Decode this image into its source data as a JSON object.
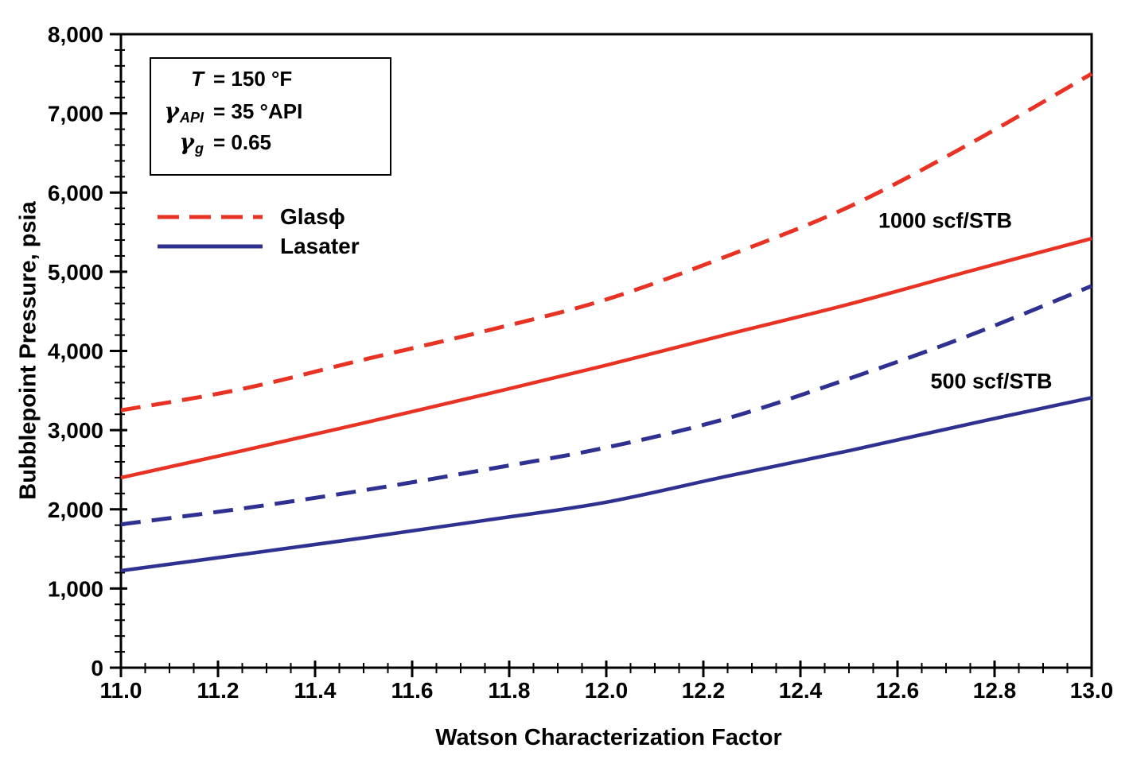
{
  "chart_data": {
    "type": "line",
    "title": "",
    "xlabel": "Watson Characterization Factor",
    "ylabel": "Bubblepoint Pressure, psia",
    "xlim": [
      11.0,
      13.0
    ],
    "ylim": [
      0,
      8000
    ],
    "x_major_step": 0.2,
    "x_minor_step": 0.05,
    "y_major_step": 1000,
    "y_minor_step": 200,
    "grid": false,
    "x_tick_labels": [
      "11.0",
      "11.2",
      "11.4",
      "11.6",
      "11.8",
      "12.0",
      "12.2",
      "12.4",
      "12.6",
      "12.8",
      "13.0"
    ],
    "y_tick_labels": [
      "0",
      "1,000",
      "2,000",
      "3,000",
      "4,000",
      "5,000",
      "6,000",
      "7,000",
      "8,000"
    ],
    "x": [
      11.0,
      11.25,
      11.5,
      11.75,
      12.0,
      12.25,
      12.5,
      12.75,
      13.0
    ],
    "series": [
      {
        "name": "Glaso 1000 scf/STB",
        "color": "#e83223",
        "style": "dashed",
        "values": [
          3250,
          3520,
          3890,
          4250,
          4650,
          5200,
          5820,
          6620,
          7500
        ]
      },
      {
        "name": "Lasater 1000 scf/STB",
        "color": "#e83223",
        "style": "solid",
        "values": [
          2400,
          2740,
          3090,
          3450,
          3820,
          4210,
          4590,
          5010,
          5420
        ]
      },
      {
        "name": "Glaso 500 scf/STB",
        "color": "#2f3191",
        "style": "dashed",
        "values": [
          1810,
          2010,
          2240,
          2500,
          2780,
          3150,
          3650,
          4200,
          4820
        ]
      },
      {
        "name": "Lasater 500 scf/STB",
        "color": "#2f3191",
        "style": "solid",
        "values": [
          1225,
          1430,
          1640,
          1860,
          2090,
          2420,
          2740,
          3080,
          3410
        ]
      }
    ],
    "legend": {
      "position": "upper-left-inside",
      "glaso_label": "Glasϕ",
      "lasater_label": "Lasater",
      "glaso_color": "#e83223",
      "lasater_color": "#2f3191"
    },
    "curve_labels": {
      "gor_1000": "1000 scf/STB",
      "gor_500": "500 scf/STB"
    },
    "annotation": {
      "line1_sym": "T",
      "line1_val": "= 150 °F",
      "line2_sym": "γ",
      "line2_sub": "API",
      "line2_val": "= 35 °API",
      "line3_sym": "γ",
      "line3_sub": "g",
      "line3_val": "= 0.65"
    },
    "colors": {
      "axis": "#000000",
      "background": "#ffffff"
    }
  }
}
